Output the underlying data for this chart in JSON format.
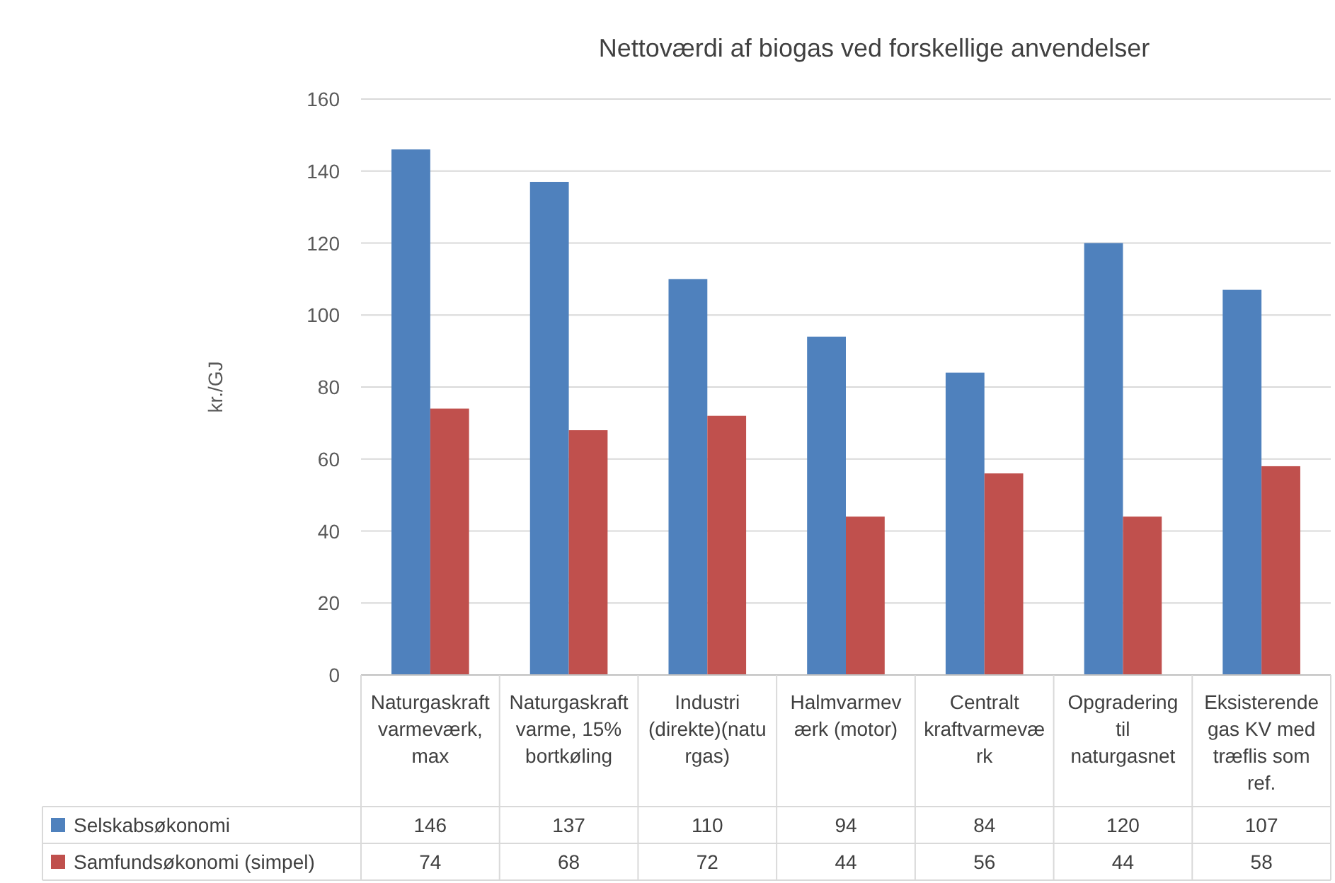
{
  "chart_data": {
    "type": "bar",
    "title": "Nettoværdi af biogas ved forskellige anvendelser",
    "ylabel": "kr./GJ",
    "categories": [
      "Naturgaskraftvarmeværk, max",
      "Naturgaskraftvarme, 15% bortkøling",
      "Industri (direkte)(naturgas)",
      "Halmvarmeværk (motor)",
      "Centralt kraftvarmeværk",
      "Opgradering til naturgasnet",
      "Eksisterende gas KV med træflis som ref."
    ],
    "series": [
      {
        "name": "Selskabsøkonomi",
        "color": "#4f81bd",
        "values": [
          146,
          137,
          110,
          94,
          84,
          120,
          107
        ]
      },
      {
        "name": "Samfundsøkonomi (simpel)",
        "color": "#c0504d",
        "values": [
          74,
          68,
          72,
          44,
          56,
          44,
          58
        ]
      }
    ],
    "ylim": [
      0,
      160
    ],
    "yticks": [
      0,
      20,
      40,
      60,
      80,
      100,
      120,
      140,
      160
    ],
    "grid": "y",
    "legend": "bottom",
    "data_labels": true
  }
}
